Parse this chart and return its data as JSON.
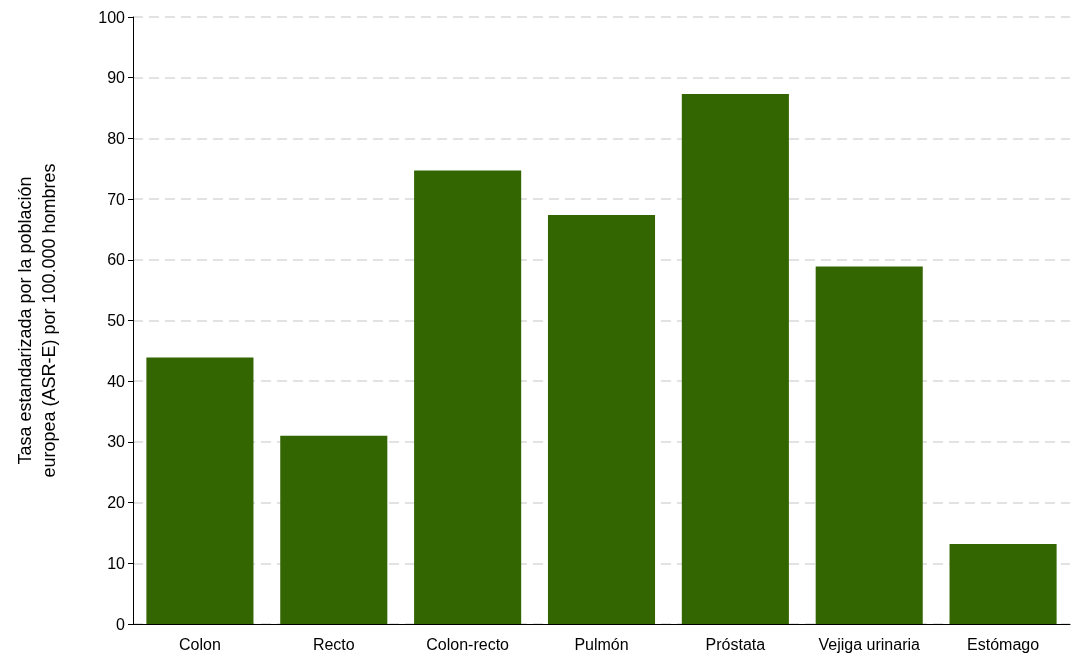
{
  "chart_data": {
    "type": "bar",
    "ylabel": "Tasa estandarizada por la población\neuropea (ASR-E) por 100.000 hombres",
    "categories": [
      "Colon",
      "Recto",
      "Colon-recto",
      "Pulmón",
      "Próstata",
      "Vejiga urinaria",
      "Estómago"
    ],
    "values": [
      43.9,
      31,
      74.7,
      67.4,
      87.3,
      58.9,
      13.2
    ],
    "color": "#336600",
    "ylim": [
      0,
      100
    ],
    "yticks": [
      0,
      10,
      20,
      30,
      40,
      50,
      60,
      70,
      80,
      90,
      100
    ],
    "grid": "y"
  }
}
